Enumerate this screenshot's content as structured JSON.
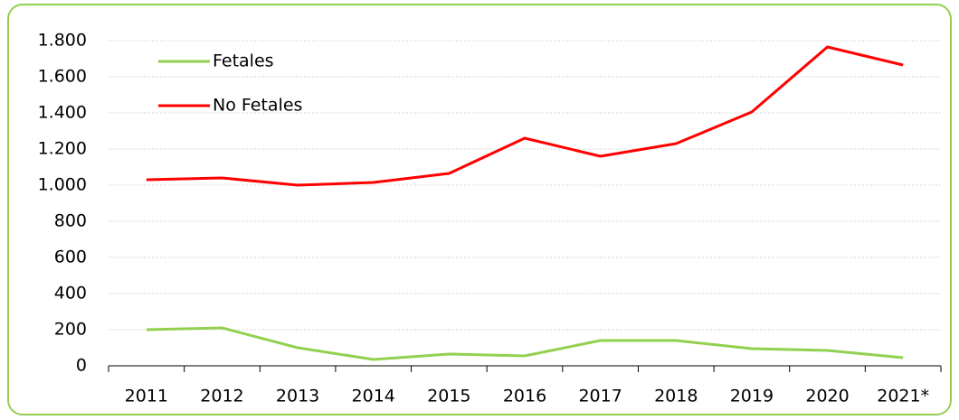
{
  "chart_data": {
    "type": "line",
    "categories": [
      "2011",
      "2012",
      "2013",
      "2014",
      "2015",
      "2016",
      "2017",
      "2018",
      "2019",
      "2020",
      "2021*"
    ],
    "series": [
      {
        "name": "Fetales",
        "color": "#92d050",
        "values": [
          200,
          210,
          100,
          35,
          65,
          55,
          140,
          140,
          95,
          85,
          45
        ]
      },
      {
        "name": "No Fetales",
        "color": "#ff0000",
        "values": [
          1030,
          1040,
          1000,
          1015,
          1065,
          1260,
          1160,
          1230,
          1405,
          1765,
          1665
        ]
      }
    ],
    "ylim": [
      0,
      1800
    ],
    "yticks": [
      0,
      200,
      400,
      600,
      800,
      {
        "value": 1000,
        "label": "1.000"
      },
      {
        "value": 1200,
        "label": "1.200"
      },
      {
        "value": 1400,
        "label": "1.400"
      },
      {
        "value": 1600,
        "label": "1.600"
      },
      {
        "value": 1800,
        "label": "1.800"
      }
    ],
    "grid": true,
    "legend": "upper left"
  }
}
